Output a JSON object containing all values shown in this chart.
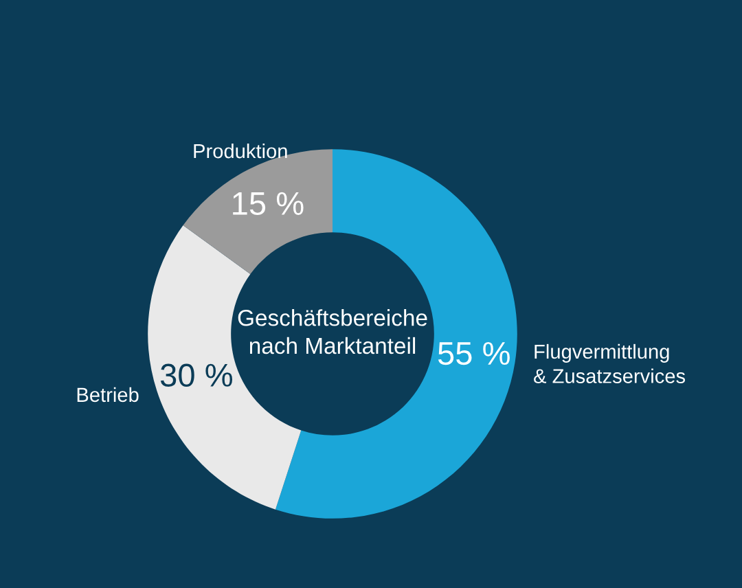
{
  "chart_data": {
    "type": "donut",
    "title": "Geschäftsbereiche\nnach Marktanteil",
    "categories": [
      "Flugvermittlung\n& Zusatzservices",
      "Betrieb",
      "Produktion"
    ],
    "values": [
      55,
      30,
      15
    ],
    "value_labels": [
      "55 %",
      "30 %",
      "15 %"
    ],
    "colors": [
      "#1ba6d8",
      "#e9e9e9",
      "#9b9b9b"
    ]
  }
}
